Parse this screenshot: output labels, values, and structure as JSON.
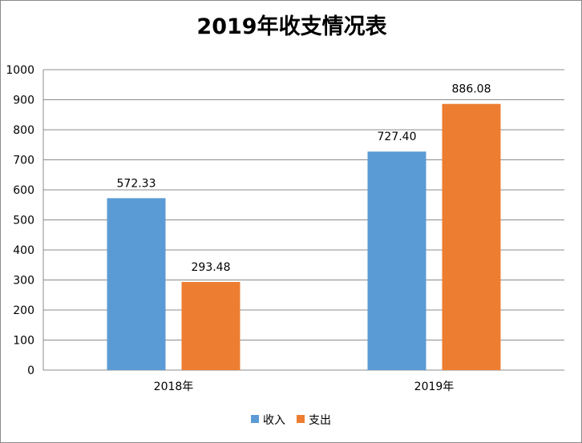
{
  "chart_data": {
    "type": "bar",
    "title": "2019年收支情况表",
    "categories": [
      "2018年",
      "2019年"
    ],
    "series": [
      {
        "name": "收入",
        "color": "#5B9BD5",
        "values": [
          572.33,
          727.4
        ],
        "labels": [
          "572.33",
          "727.40"
        ]
      },
      {
        "name": "支出",
        "color": "#ED7D31",
        "values": [
          293.48,
          886.08
        ],
        "labels": [
          "293.48",
          "886.08"
        ]
      }
    ],
    "ylim": [
      0,
      1000
    ],
    "yticks": [
      "0",
      "100",
      "200",
      "300",
      "400",
      "500",
      "600",
      "700",
      "800",
      "900",
      "1000"
    ],
    "grid": true,
    "legend": "bottom",
    "xlabel": "",
    "ylabel": ""
  }
}
